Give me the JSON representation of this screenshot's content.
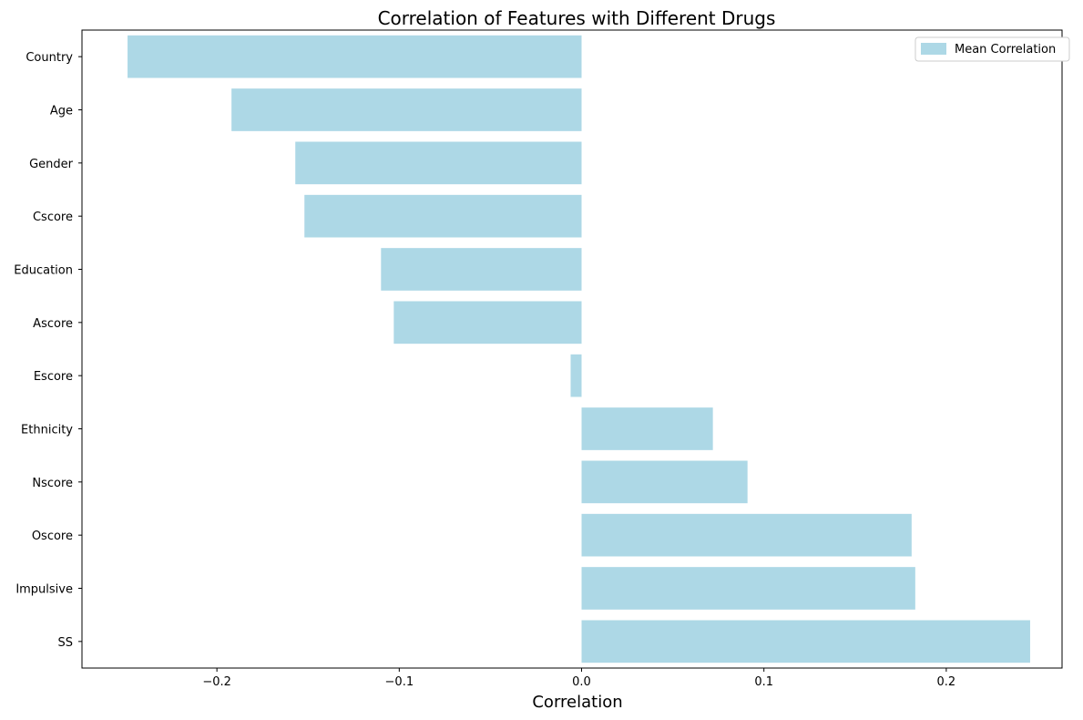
{
  "chart_data": {
    "type": "bar",
    "orientation": "horizontal",
    "title": "Correlation of Features with Different Drugs",
    "xlabel": "Correlation",
    "ylabel": "",
    "categories": [
      "Country",
      "Age",
      "Gender",
      "Cscore",
      "Education",
      "Ascore",
      "Escore",
      "Ethnicity",
      "Nscore",
      "Oscore",
      "Impulsive",
      "SS"
    ],
    "series": [
      {
        "name": "Mean Correlation",
        "color": "#add8e6",
        "values": [
          -0.249,
          -0.192,
          -0.157,
          -0.152,
          -0.11,
          -0.103,
          -0.006,
          0.072,
          0.091,
          0.181,
          0.183,
          0.246
        ]
      }
    ],
    "xlim": [
      -0.274,
      0.2635
    ],
    "xticks": [
      -0.2,
      -0.1,
      0.0,
      0.1,
      0.2
    ],
    "xtick_labels": [
      "−0.2",
      "−0.1",
      "0.0",
      "0.1",
      "0.2"
    ],
    "grid": false,
    "legend_position": "top-right"
  }
}
